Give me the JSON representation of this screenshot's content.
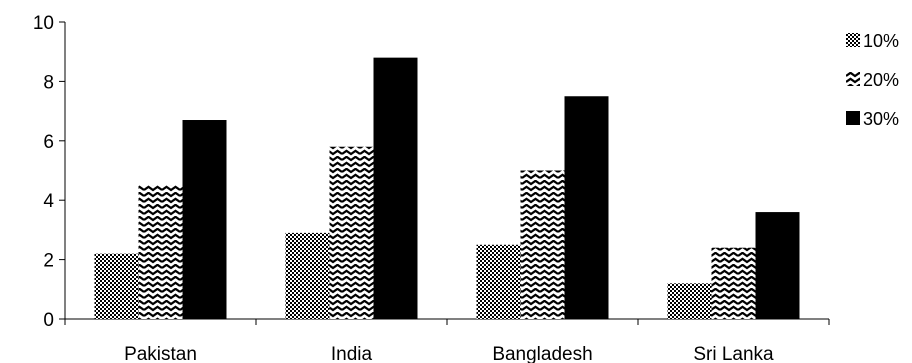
{
  "chart_data": {
    "type": "bar",
    "categories": [
      "Pakistan",
      "India",
      "Bangladesh",
      "Sri Lanka"
    ],
    "series": [
      {
        "name": "10%",
        "values": [
          2.2,
          2.9,
          2.5,
          1.2
        ],
        "pattern": "dots"
      },
      {
        "name": "20%",
        "values": [
          4.5,
          5.8,
          5.0,
          2.4
        ],
        "pattern": "zigzag"
      },
      {
        "name": "30%",
        "values": [
          6.7,
          8.8,
          7.5,
          3.6
        ],
        "pattern": "solid"
      }
    ],
    "title": "",
    "xlabel": "",
    "ylabel": "",
    "ylim": [
      0,
      10
    ],
    "yticks": [
      0,
      2,
      4,
      6,
      8,
      10
    ],
    "grid": false,
    "legend": "right",
    "colors": {
      "ink": "#000000",
      "background": "#ffffff"
    }
  }
}
